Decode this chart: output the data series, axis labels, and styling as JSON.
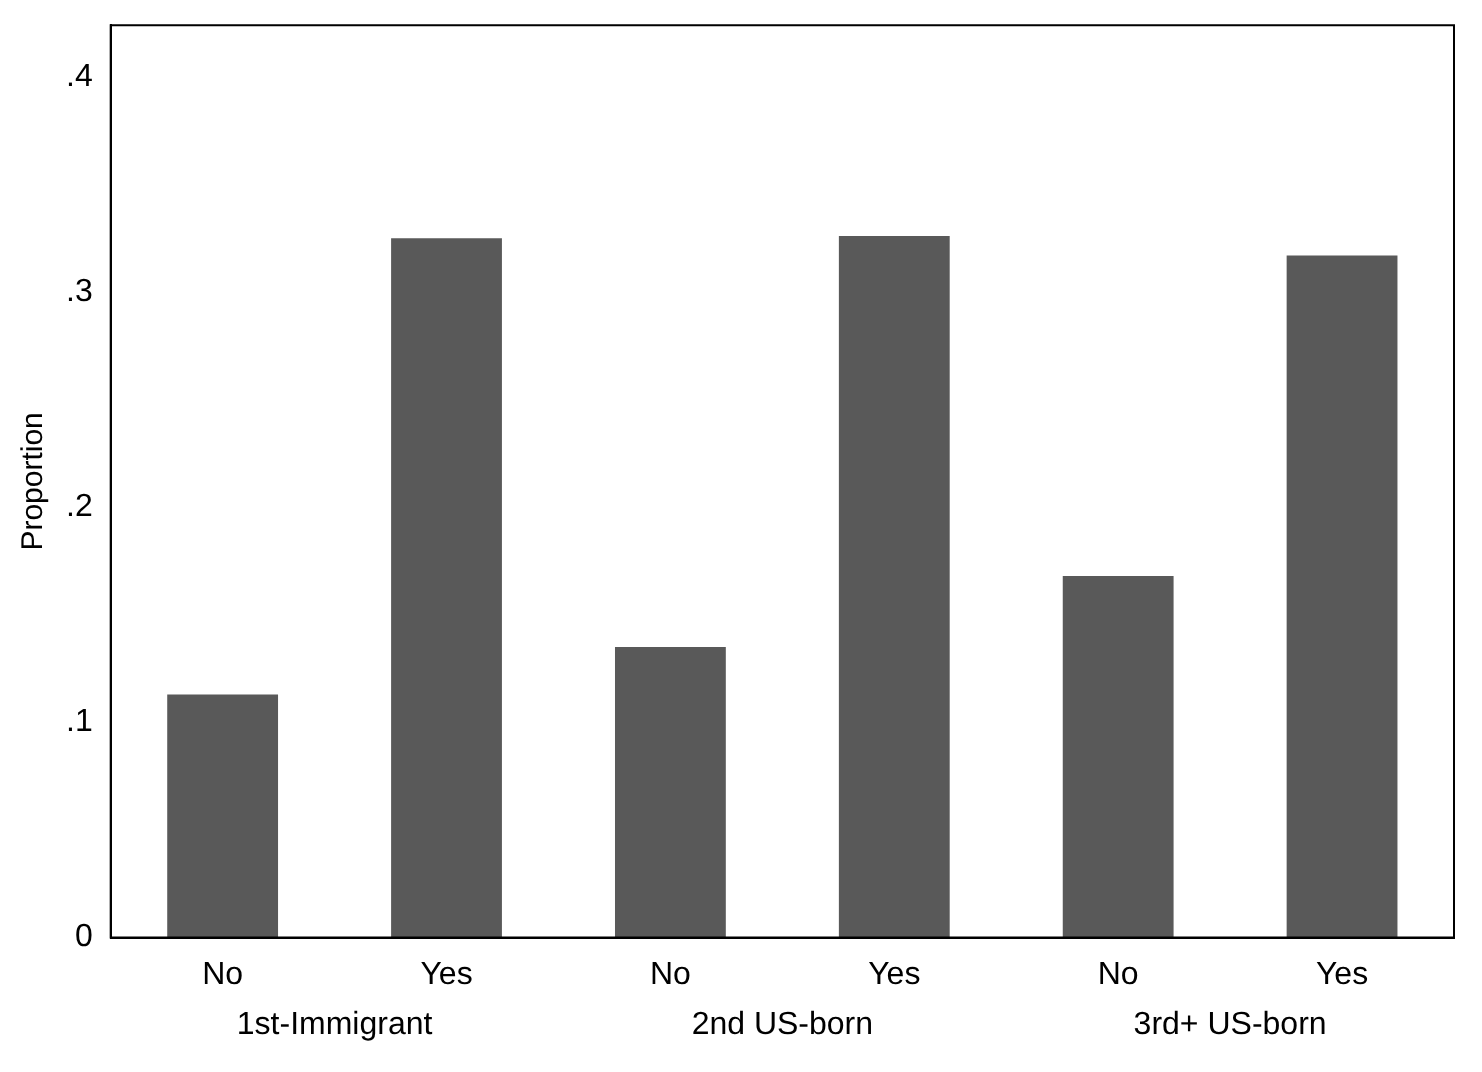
{
  "chart_data": {
    "type": "bar",
    "ylabel": "Proportion",
    "categories": [
      "No",
      "Yes",
      "No",
      "Yes",
      "No",
      "Yes"
    ],
    "values": [
      0.113,
      0.325,
      0.135,
      0.326,
      0.168,
      0.317
    ],
    "color": "#595959",
    "ylim": [
      0,
      0.424
    ],
    "yticks": [
      0,
      {
        "value": 0.1,
        "label": ".1"
      },
      {
        "value": 0.2,
        "label": ".2"
      },
      {
        "value": 0.3,
        "label": ".3"
      },
      {
        "value": 0.4,
        "label": ".4"
      }
    ],
    "annotations": [
      "1st-Immigrant",
      "2nd US-born",
      "3rd+ US-born"
    ],
    "grid": false,
    "legend": false
  }
}
